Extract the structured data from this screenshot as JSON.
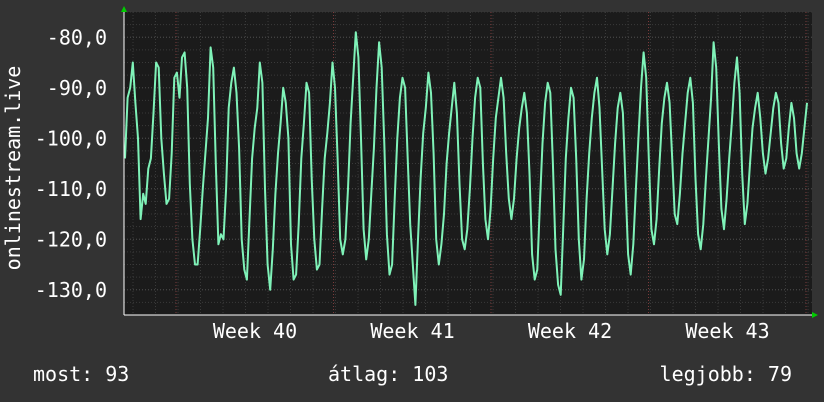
{
  "chart_data": {
    "type": "line",
    "ylabel": "onlinestream.live",
    "y_ticks": [
      "-80,0",
      "-90,0",
      "-100,0",
      "-110,0",
      "-120,0",
      "-130,0"
    ],
    "y_tick_values": [
      -80,
      -90,
      -100,
      -110,
      -120,
      -130
    ],
    "ylim": [
      -135,
      -75
    ],
    "x_ticks": [
      "Week 40",
      "Week 41",
      "Week 42",
      "Week 43"
    ],
    "grid": true,
    "colors": {
      "background": "#333333",
      "plot_background": "#1b1b1b",
      "grid": "#4a4a4a",
      "line": "#7ff2b8",
      "axis": "#ffffff",
      "arrow": "#00cc00"
    },
    "series": [
      {
        "values": [
          -104,
          -92,
          -90,
          -85,
          -93,
          -100,
          -116,
          -111,
          -113,
          -106,
          -104,
          -95,
          -85,
          -86,
          -100,
          -107,
          -113,
          -112,
          -103,
          -88,
          -87,
          -92,
          -84,
          -83,
          -90,
          -109,
          -120,
          -125,
          -125,
          -118,
          -110,
          -103,
          -96,
          -82,
          -86,
          -105,
          -121,
          -119,
          -120,
          -110,
          -94,
          -89,
          -86,
          -91,
          -102,
          -120,
          -126,
          -128,
          -116,
          -104,
          -98,
          -94,
          -85,
          -89,
          -110,
          -125,
          -130,
          -122,
          -111,
          -103,
          -97,
          -90,
          -93,
          -100,
          -121,
          -128,
          -127,
          -117,
          -104,
          -97,
          -89,
          -91,
          -108,
          -120,
          -126,
          -125,
          -114,
          -104,
          -99,
          -93,
          -85,
          -90,
          -104,
          -120,
          -123,
          -120,
          -110,
          -97,
          -88,
          -79,
          -84,
          -100,
          -118,
          -124,
          -120,
          -111,
          -102,
          -90,
          -81,
          -86,
          -101,
          -119,
          -127,
          -125,
          -112,
          -100,
          -92,
          -88,
          -90,
          -104,
          -117,
          -125,
          -133,
          -120,
          -108,
          -99,
          -94,
          -87,
          -91,
          -103,
          -120,
          -125,
          -121,
          -115,
          -105,
          -99,
          -94,
          -89,
          -95,
          -109,
          -120,
          -122,
          -118,
          -110,
          -100,
          -92,
          -88,
          -90,
          -105,
          -116,
          -120,
          -114,
          -104,
          -96,
          -92,
          -88,
          -92,
          -103,
          -112,
          -116,
          -112,
          -104,
          -98,
          -94,
          -91,
          -95,
          -107,
          -123,
          -128,
          -126,
          -113,
          -101,
          -93,
          -89,
          -91,
          -105,
          -122,
          -129,
          -131,
          -118,
          -104,
          -96,
          -90,
          -92,
          -104,
          -120,
          -128,
          -124,
          -112,
          -103,
          -96,
          -91,
          -88,
          -94,
          -106,
          -118,
          -123,
          -119,
          -110,
          -101,
          -94,
          -91,
          -95,
          -109,
          -123,
          -127,
          -121,
          -110,
          -100,
          -90,
          -83,
          -88,
          -104,
          -118,
          -121,
          -116,
          -106,
          -97,
          -92,
          -89,
          -93,
          -104,
          -115,
          -117,
          -111,
          -103,
          -97,
          -91,
          -88,
          -93,
          -108,
          -119,
          -122,
          -117,
          -108,
          -100,
          -92,
          -81,
          -86,
          -101,
          -114,
          -118,
          -112,
          -104,
          -97,
          -89,
          -84,
          -91,
          -107,
          -117,
          -113,
          -105,
          -98,
          -94,
          -91,
          -96,
          -103,
          -107,
          -104,
          -99,
          -94,
          -91,
          -93,
          -101,
          -106,
          -104,
          -98,
          -93,
          -96,
          -103,
          -106,
          -103,
          -98,
          -93
        ]
      }
    ]
  },
  "footer": {
    "now": "most: 93",
    "avg": "átlag: 103",
    "best": "legjobb: 79"
  }
}
